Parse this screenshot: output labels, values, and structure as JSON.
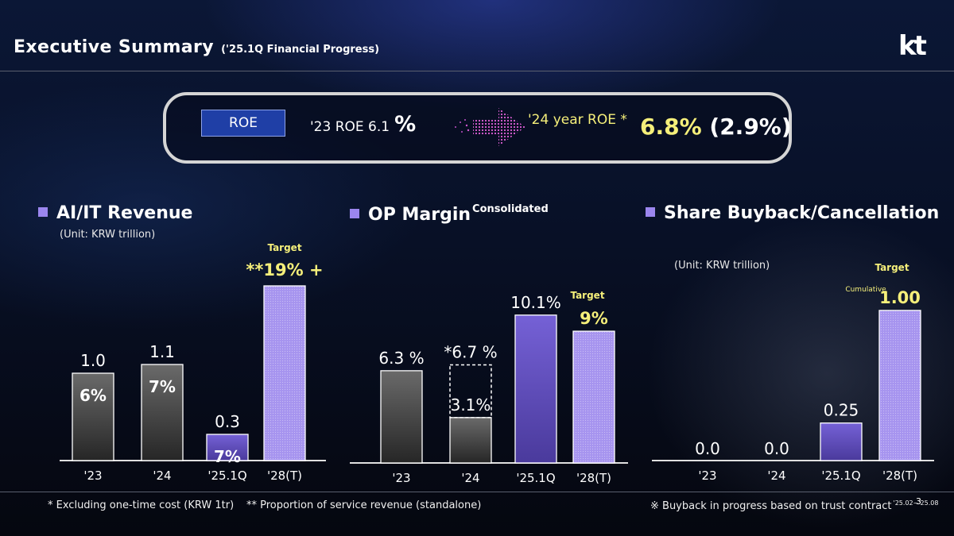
{
  "header": {
    "title": "Executive Summary",
    "subtitle": "('25.1Q Financial Progress)",
    "logo": "kt"
  },
  "roe": {
    "label": "ROE",
    "prev": "'23 ROE 6.1",
    "prev_unit": "%",
    "curr_label": "'24 year ROE *",
    "curr_value": "6.8%",
    "curr_paren": "(2.9%)"
  },
  "sections": {
    "ai": {
      "title": "AI/IT Revenue",
      "unit": "(Unit: KRW trillion)"
    },
    "op": {
      "title": "OP Margin",
      "superscript": "Consolidated"
    },
    "sb": {
      "title": "Share Buyback/Cancellation",
      "unit": "(Unit: KRW trillion)"
    }
  },
  "chart_data": [
    {
      "type": "bar",
      "categories": [
        "'23",
        "'24",
        "'25.1Q",
        "'28(T)"
      ],
      "values": [
        1.0,
        1.1,
        0.3,
        null
      ],
      "value_labels": [
        "1.0",
        "1.1",
        "0.3",
        ""
      ],
      "inner_labels": [
        "6%",
        "7%",
        "7%",
        ""
      ],
      "target_shares": [
        null,
        null,
        null,
        19
      ],
      "target": {
        "label": "Target",
        "value_text": "**19% +"
      },
      "ylim": [
        0,
        2.0
      ],
      "bar_colors": [
        "#5a5a5a",
        "#5a5a5a",
        "#6a55c8",
        "#a694ef"
      ]
    },
    {
      "type": "bar",
      "categories": [
        "'23",
        "'24",
        "'25.1Q",
        "'28(T)"
      ],
      "values": [
        6.3,
        3.1,
        10.1,
        9
      ],
      "value_labels": [
        "6.3 %",
        "3.1%",
        "10.1%",
        "9%"
      ],
      "extra": {
        "category": "'24",
        "value": 6.7,
        "label": "*6.7 %"
      },
      "target": {
        "label": "Target",
        "category": "'28(T)"
      },
      "ylim": [
        0,
        11.5
      ],
      "bar_colors": [
        "#5a5a5a",
        "#5a5a5a",
        "#6a55c8",
        "#a694ef"
      ]
    },
    {
      "type": "bar",
      "categories": [
        "'23",
        "'24",
        "'25.1Q",
        "'28(T)"
      ],
      "values": [
        0.0,
        0.0,
        0.25,
        1.0
      ],
      "value_labels": [
        "0.0",
        "0.0",
        "0.25",
        "1.00"
      ],
      "target": {
        "label": "Target",
        "prefix": "Cumulative"
      },
      "ylim": [
        0,
        1.1
      ],
      "bar_colors": [
        "#5a5a5a",
        "#5a5a5a",
        "#6a55c8",
        "#a694ef"
      ]
    }
  ],
  "footnotes": {
    "one_time": "* Excluding one-time cost (KRW 1tr)",
    "service": "** Proportion of service revenue (standalone)",
    "buyback": "※ Buyback in progress based on trust contract",
    "buyback_period": "'25.02~'25.08",
    "page": "3"
  },
  "colors": {
    "accent_yellow": "#f5ef7a",
    "accent_purple": "#9b86ee",
    "roe_button": "#1f3fa6"
  }
}
